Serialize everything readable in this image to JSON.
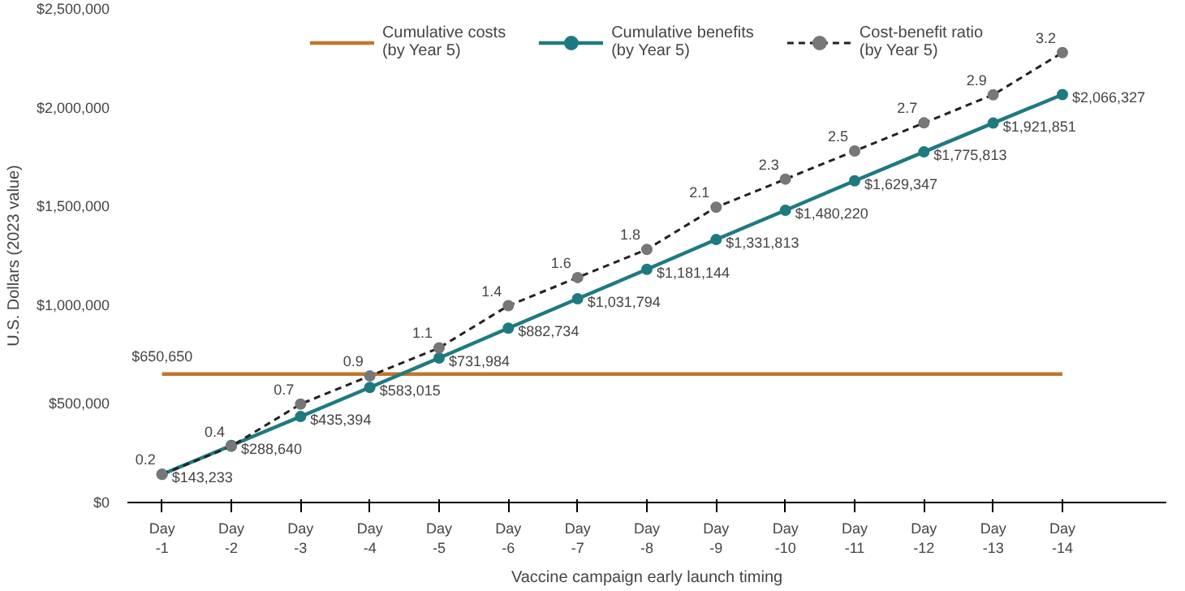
{
  "chart_data": {
    "type": "line",
    "xlabel": "Vaccine campaign early launch timing",
    "ylabel": "U.S. Dollars (2023 value)",
    "categories": [
      "Day\n-1",
      "Day\n-2",
      "Day\n-3",
      "Day\n-4",
      "Day\n-5",
      "Day\n-6",
      "Day\n-7",
      "Day\n-8",
      "Day\n-9",
      "Day\n-10",
      "Day\n-11",
      "Day\n-12",
      "Day\n-13",
      "Day\n-14"
    ],
    "ylim": [
      0,
      2500000
    ],
    "yticks": [
      {
        "value": 0,
        "label": "$0"
      },
      {
        "value": 500000,
        "label": "$500,000"
      },
      {
        "value": 1000000,
        "label": "$1,000,000"
      },
      {
        "value": 1500000,
        "label": "$1,500,000"
      },
      {
        "value": 2000000,
        "label": "$2,000,000"
      },
      {
        "value": 2500000,
        "label": "$2,500,000"
      }
    ],
    "grid": false,
    "legend": "top",
    "series": [
      {
        "name": "Cumulative costs\n(by Year 5)",
        "color": "#c0772a",
        "marker": "none",
        "line_style": "solid",
        "values": [
          650650,
          650650,
          650650,
          650650,
          650650,
          650650,
          650650,
          650650,
          650650,
          650650,
          650650,
          650650,
          650650,
          650650
        ],
        "value_labels": [
          "$650,650",
          null,
          null,
          null,
          null,
          null,
          null,
          null,
          null,
          null,
          null,
          null,
          null,
          null
        ]
      },
      {
        "name": "Cumulative benefits\n(by Year 5)",
        "color": "#1f7a80",
        "marker": "circle",
        "line_style": "solid",
        "values": [
          143233,
          288640,
          435394,
          583015,
          731984,
          882734,
          1031794,
          1181144,
          1331813,
          1480220,
          1629347,
          1775813,
          1921851,
          2066327
        ],
        "value_labels": [
          "$143,233",
          "$288,640",
          "$435,394",
          "$583,015",
          "$731,984",
          "$882,734",
          "$1,031,794",
          "$1,181,144",
          "$1,331,813",
          "$1,480,220",
          "$1,629,347",
          "$1,775,813",
          "$1,921,851",
          "$2,066,327"
        ]
      },
      {
        "name": "Cost-benefit ratio\n(by Year 5)",
        "color": "#222222",
        "marker": "circle",
        "line_style": "dashed",
        "axis": "y2",
        "values": [
          0.2,
          0.4,
          0.7,
          0.9,
          1.1,
          1.4,
          1.6,
          1.8,
          2.1,
          2.3,
          2.5,
          2.7,
          2.9,
          3.2
        ],
        "value_labels": [
          "0.2",
          "0.4",
          "0.7",
          "0.9",
          "1.1",
          "1.4",
          "1.6",
          "1.8",
          "2.1",
          "2.3",
          "2.5",
          "2.7",
          "2.9",
          "3.2"
        ]
      }
    ]
  }
}
